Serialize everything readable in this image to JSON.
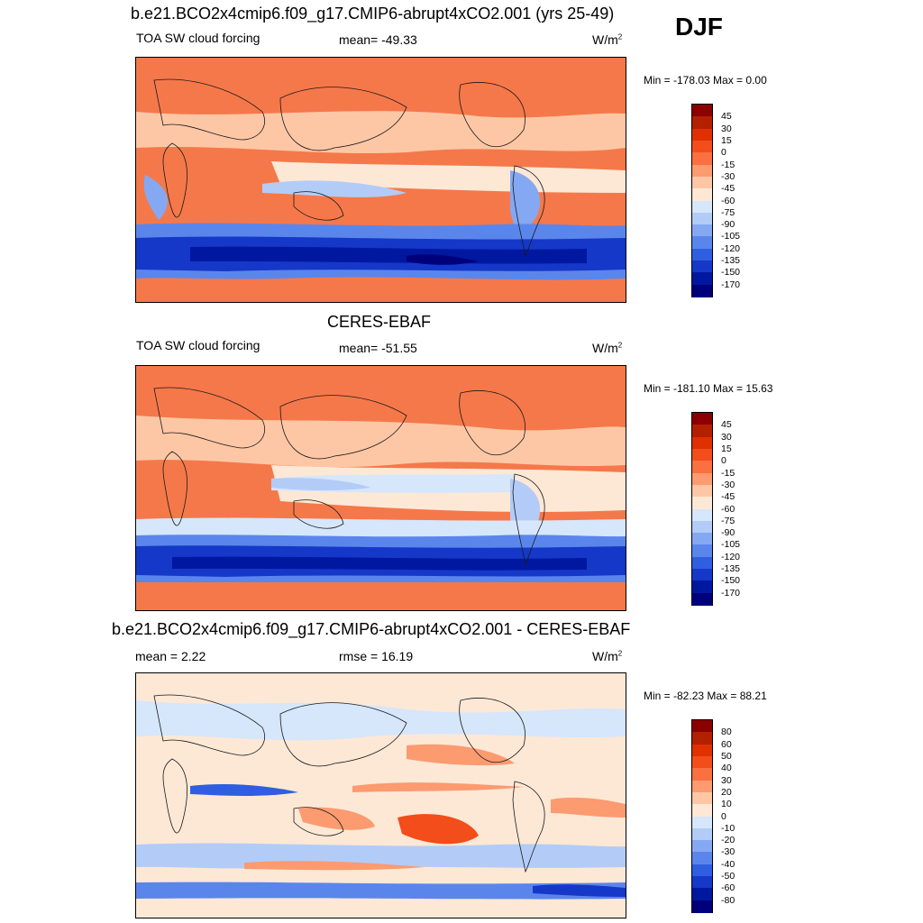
{
  "season": "DJF",
  "panels": [
    {
      "title": "b.e21.BCO2x4cmip6.f09_g17.CMIP6-abrupt4xCO2.001 (yrs 25-49)",
      "left": "TOA SW cloud forcing",
      "center": "mean= -49.33",
      "units": "W/m",
      "units_sup": "2",
      "minmax": "Min = -178.03 Max =   0.00",
      "colorbar": {
        "labels": [
          "45",
          "30",
          "15",
          "0",
          "-15",
          "-30",
          "-45",
          "-60",
          "-75",
          "-90",
          "-105",
          "-120",
          "-135",
          "-150",
          "-170"
        ],
        "colors": [
          "#8b0000",
          "#b22000",
          "#e03000",
          "#f24d1a",
          "#fa7040",
          "#fc9a70",
          "#fdc7a6",
          "#fde8d6",
          "#d6e6fb",
          "#b3ccf7",
          "#85a8f2",
          "#5a86ec",
          "#2f5fe0",
          "#1538c8",
          "#0018a0",
          "#00007a"
        ]
      }
    },
    {
      "title": "CERES-EBAF",
      "left": "TOA SW cloud forcing",
      "center": "mean= -51.55",
      "units": "W/m",
      "units_sup": "2",
      "minmax": "Min = -181.10 Max =  15.63",
      "colorbar": {
        "labels": [
          "45",
          "30",
          "15",
          "0",
          "-15",
          "-30",
          "-45",
          "-60",
          "-75",
          "-90",
          "-105",
          "-120",
          "-135",
          "-150",
          "-170"
        ],
        "colors": [
          "#8b0000",
          "#b22000",
          "#e03000",
          "#f24d1a",
          "#fa7040",
          "#fc9a70",
          "#fdc7a6",
          "#fde8d6",
          "#d6e6fb",
          "#b3ccf7",
          "#85a8f2",
          "#5a86ec",
          "#2f5fe0",
          "#1538c8",
          "#0018a0",
          "#00007a"
        ]
      }
    },
    {
      "title": "b.e21.BCO2x4cmip6.f09_g17.CMIP6-abrupt4xCO2.001 - CERES-EBAF",
      "left": "mean =   2.22",
      "center": "rmse =  16.19",
      "units": "W/m",
      "units_sup": "2",
      "minmax": "Min = -82.23 Max =  88.21",
      "colorbar": {
        "labels": [
          "80",
          "60",
          "50",
          "40",
          "30",
          "20",
          "10",
          "0",
          "-10",
          "-20",
          "-30",
          "-40",
          "-50",
          "-60",
          "-80"
        ],
        "colors": [
          "#8b0000",
          "#b22000",
          "#e03000",
          "#f24d1a",
          "#fa7040",
          "#fc9a70",
          "#fdc7a6",
          "#fde8d6",
          "#d6e6fb",
          "#b3ccf7",
          "#85a8f2",
          "#5a86ec",
          "#2f5fe0",
          "#1538c8",
          "#0018a0",
          "#00007a"
        ]
      }
    }
  ]
}
